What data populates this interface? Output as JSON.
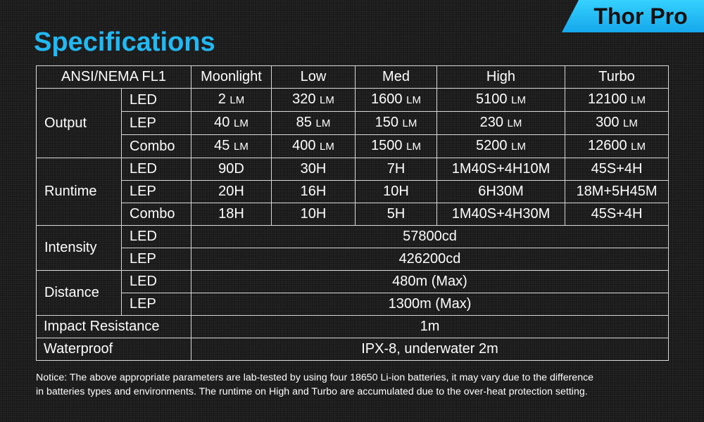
{
  "product_badge": "Thor Pro",
  "title": "Specifications",
  "table": {
    "header": {
      "label": "ANSI/NEMA FL1",
      "modes": [
        "Moonlight",
        "Low",
        "Med",
        "High",
        "Turbo"
      ]
    },
    "output": {
      "label": "Output",
      "unit": "LM",
      "rows": [
        {
          "sub": "LED",
          "values": [
            "2",
            "320",
            "1600",
            "5100",
            "12100"
          ]
        },
        {
          "sub": "LEP",
          "values": [
            "40",
            "85",
            "150",
            "230",
            "300"
          ]
        },
        {
          "sub": "Combo",
          "values": [
            "45",
            "400",
            "1500",
            "5200",
            "12600"
          ]
        }
      ]
    },
    "runtime": {
      "label": "Runtime",
      "rows": [
        {
          "sub": "LED",
          "values": [
            "90D",
            "30H",
            "7H",
            "1M40S+4H10M",
            "45S+4H"
          ]
        },
        {
          "sub": "LEP",
          "values": [
            "20H",
            "16H",
            "10H",
            "6H30M",
            "18M+5H45M"
          ]
        },
        {
          "sub": "Combo",
          "values": [
            "18H",
            "10H",
            "5H",
            "1M40S+4H30M",
            "45S+4H"
          ]
        }
      ]
    },
    "intensity": {
      "label": "Intensity",
      "rows": [
        {
          "sub": "LED",
          "value": "57800cd"
        },
        {
          "sub": "LEP",
          "value": "426200cd"
        }
      ]
    },
    "distance": {
      "label": "Distance",
      "rows": [
        {
          "sub": "LED",
          "value": "480m (Max)"
        },
        {
          "sub": "LEP",
          "value": "1300m (Max)"
        }
      ]
    },
    "impact": {
      "label": "Impact Resistance",
      "value": "1m"
    },
    "waterproof": {
      "label": "Waterproof",
      "value": "IPX-8, underwater 2m"
    }
  },
  "notice": {
    "line1": "Notice: The above appropriate parameters are lab-tested by using four 18650 Li-ion batteries, it may vary due to the difference",
    "line2": "in batteries types and environments. The runtime on High and Turbo are accumulated due to the over-heat protection setting."
  }
}
